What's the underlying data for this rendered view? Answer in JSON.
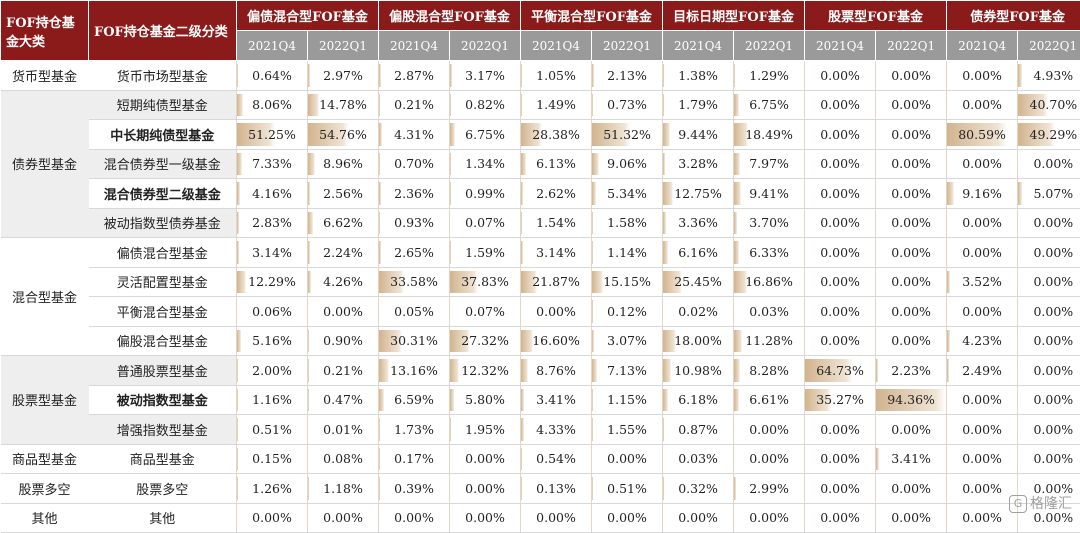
{
  "header": {
    "col_category": "FOF持仓基金大类",
    "col_subcategory": "FOF持仓基金二级分类",
    "fund_types": [
      "偏债混合型FOF基金",
      "偏股混合型FOF基金",
      "平衡混合型FOF基金",
      "目标日期型FOF基金",
      "股票型FOF基金",
      "债券型FOF基金"
    ],
    "quarters": [
      "2021Q4",
      "2022Q1"
    ]
  },
  "bar_max": 94.36,
  "groups": [
    {
      "category": "货币型基金",
      "shaded": false,
      "rows": [
        {
          "sub": "货币市场型基金",
          "bold": false,
          "values": [
            "0.64%",
            "2.97%",
            "2.87%",
            "3.17%",
            "1.05%",
            "2.13%",
            "1.38%",
            "1.29%",
            "0.00%",
            "0.00%",
            "0.00%",
            "4.93%"
          ]
        }
      ]
    },
    {
      "category": "债券型基金",
      "shaded": true,
      "rows": [
        {
          "sub": "短期纯债型基金",
          "bold": false,
          "values": [
            "8.06%",
            "14.78%",
            "0.21%",
            "0.82%",
            "1.49%",
            "0.73%",
            "1.79%",
            "6.75%",
            "0.00%",
            "0.00%",
            "0.00%",
            "40.70%"
          ]
        },
        {
          "sub": "中长期纯债型基金",
          "bold": true,
          "values": [
            "51.25%",
            "54.76%",
            "4.31%",
            "6.75%",
            "28.38%",
            "51.32%",
            "9.44%",
            "18.49%",
            "0.00%",
            "0.00%",
            "80.59%",
            "49.29%"
          ]
        },
        {
          "sub": "混合债券型一级基金",
          "bold": false,
          "values": [
            "7.33%",
            "8.96%",
            "0.70%",
            "1.34%",
            "6.13%",
            "9.06%",
            "3.28%",
            "7.97%",
            "0.00%",
            "0.00%",
            "0.00%",
            "0.00%"
          ]
        },
        {
          "sub": "混合债券型二级基金",
          "bold": true,
          "values": [
            "4.16%",
            "2.56%",
            "2.36%",
            "0.99%",
            "2.62%",
            "5.34%",
            "12.75%",
            "9.41%",
            "0.00%",
            "0.00%",
            "9.16%",
            "5.07%"
          ]
        },
        {
          "sub": "被动指数型债券基金",
          "bold": false,
          "values": [
            "2.83%",
            "6.62%",
            "0.93%",
            "0.07%",
            "1.54%",
            "1.58%",
            "3.36%",
            "3.70%",
            "0.00%",
            "0.00%",
            "0.00%",
            "0.00%"
          ]
        }
      ]
    },
    {
      "category": "混合型基金",
      "shaded": false,
      "rows": [
        {
          "sub": "偏债混合型基金",
          "bold": false,
          "values": [
            "3.14%",
            "2.24%",
            "2.65%",
            "1.59%",
            "3.14%",
            "1.14%",
            "6.16%",
            "6.33%",
            "0.00%",
            "0.00%",
            "0.00%",
            "0.00%"
          ]
        },
        {
          "sub": "灵活配置型基金",
          "bold": false,
          "values": [
            "12.29%",
            "4.26%",
            "33.58%",
            "37.83%",
            "21.87%",
            "15.15%",
            "25.45%",
            "16.86%",
            "0.00%",
            "0.00%",
            "3.52%",
            "0.00%"
          ]
        },
        {
          "sub": "平衡混合型基金",
          "bold": false,
          "values": [
            "0.06%",
            "0.00%",
            "0.05%",
            "0.07%",
            "0.00%",
            "0.12%",
            "0.02%",
            "0.03%",
            "0.00%",
            "0.00%",
            "0.00%",
            "0.00%"
          ]
        },
        {
          "sub": "偏股混合型基金",
          "bold": false,
          "values": [
            "5.16%",
            "0.90%",
            "30.31%",
            "27.32%",
            "16.60%",
            "3.07%",
            "18.00%",
            "11.28%",
            "0.00%",
            "0.00%",
            "4.23%",
            "0.00%"
          ]
        }
      ]
    },
    {
      "category": "股票型基金",
      "shaded": true,
      "rows": [
        {
          "sub": "普通股票型基金",
          "bold": false,
          "values": [
            "2.00%",
            "0.21%",
            "13.16%",
            "12.32%",
            "8.76%",
            "7.13%",
            "10.98%",
            "8.28%",
            "64.73%",
            "2.23%",
            "2.49%",
            "0.00%"
          ]
        },
        {
          "sub": "被动指数型基金",
          "bold": true,
          "values": [
            "1.16%",
            "0.47%",
            "6.59%",
            "5.80%",
            "3.41%",
            "1.15%",
            "6.18%",
            "6.61%",
            "35.27%",
            "94.36%",
            "0.00%",
            "0.00%"
          ]
        },
        {
          "sub": "增强指数型基金",
          "bold": false,
          "values": [
            "0.51%",
            "0.01%",
            "1.73%",
            "1.95%",
            "4.33%",
            "1.55%",
            "0.87%",
            "0.00%",
            "0.00%",
            "0.00%",
            "0.00%",
            "0.00%"
          ]
        }
      ]
    },
    {
      "category": "商品型基金",
      "shaded": false,
      "rows": [
        {
          "sub": "商品型基金",
          "bold": false,
          "values": [
            "0.15%",
            "0.08%",
            "0.17%",
            "0.00%",
            "0.54%",
            "0.00%",
            "0.03%",
            "0.00%",
            "0.00%",
            "3.41%",
            "0.00%",
            "0.00%"
          ]
        }
      ]
    },
    {
      "category": "股票多空",
      "shaded": false,
      "rows": [
        {
          "sub": "股票多空",
          "bold": false,
          "values": [
            "1.26%",
            "1.18%",
            "0.39%",
            "0.00%",
            "0.13%",
            "0.51%",
            "0.32%",
            "2.99%",
            "0.00%",
            "0.00%",
            "0.00%",
            "0.00%"
          ]
        }
      ]
    },
    {
      "category": "其他",
      "shaded": false,
      "rows": [
        {
          "sub": "其他",
          "bold": false,
          "values": [
            "0.00%",
            "0.00%",
            "0.00%",
            "0.00%",
            "0.00%",
            "0.00%",
            "0.00%",
            "0.00%",
            "0.00%",
            "0.00%",
            "0.00%",
            "0.00%"
          ]
        }
      ]
    }
  ],
  "watermark": {
    "icon": "G",
    "text": "格隆汇"
  }
}
